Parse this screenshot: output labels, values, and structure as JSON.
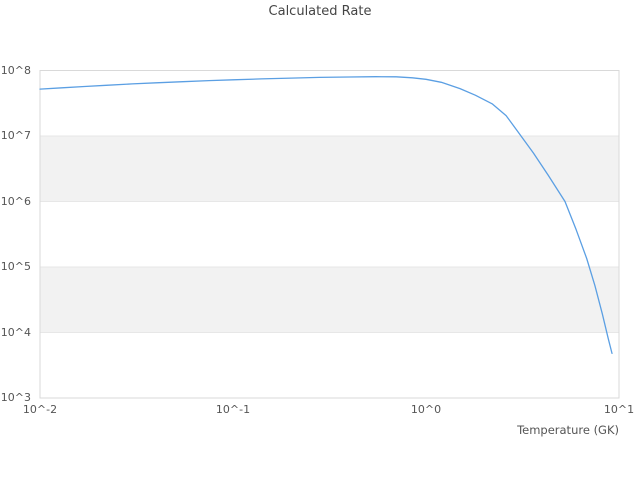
{
  "title": "Calculated Rate",
  "chart_data": {
    "type": "line",
    "title": "Calculated Rate",
    "xlabel": "Temperature (GK)",
    "ylabel": "",
    "x_scale": "log",
    "y_scale": "log",
    "xlim": [
      0.01,
      10
    ],
    "ylim": [
      1000,
      100000000
    ],
    "x_tick_labels": [
      "10^-2",
      "10^-1",
      "10^0",
      "10^1"
    ],
    "x_ticks": [
      0.01,
      0.1,
      1,
      10
    ],
    "y_tick_labels": [
      "10^8",
      "10^7",
      "10^6",
      "10^5",
      "10^4",
      "10^3"
    ],
    "y_ticks": [
      100000000,
      10000000,
      1000000,
      100000,
      10000,
      1000
    ],
    "grid": "horizontal decade lines only",
    "legend": "none",
    "shaded_bands": [
      [
        1000000,
        10000000
      ],
      [
        10000,
        100000
      ]
    ],
    "series": [
      {
        "name": "calculated-rate",
        "x": [
          0.01,
          0.013,
          0.017,
          0.022,
          0.03,
          0.04,
          0.055,
          0.075,
          0.1,
          0.14,
          0.2,
          0.28,
          0.4,
          0.55,
          0.7,
          0.85,
          1.0,
          1.2,
          1.5,
          1.8,
          2.2,
          2.6,
          3.0,
          3.6,
          4.3,
          5.25,
          6.0,
          6.8,
          7.5,
          8.2,
          8.8,
          9.2
        ],
        "y": [
          52000000,
          54500000,
          57000000,
          59500000,
          62500000,
          65000000,
          67500000,
          70000000,
          72000000,
          74500000,
          76500000,
          78500000,
          79500000,
          80500000,
          80000000,
          77500000,
          73500000,
          66000000,
          53000000,
          42000000,
          31000000,
          20500000,
          11500000,
          5500000,
          2500000,
          1000000,
          370000,
          135000,
          52000,
          19000,
          8000,
          4800
        ]
      }
    ],
    "colors": {
      "line": "#5b9fe3",
      "band_fill": "#f2f2f2",
      "grid_line": "#e7e7e7",
      "plot_border": "#d9d9d9",
      "tick_text": "#555555",
      "title_text": "#454545"
    }
  }
}
